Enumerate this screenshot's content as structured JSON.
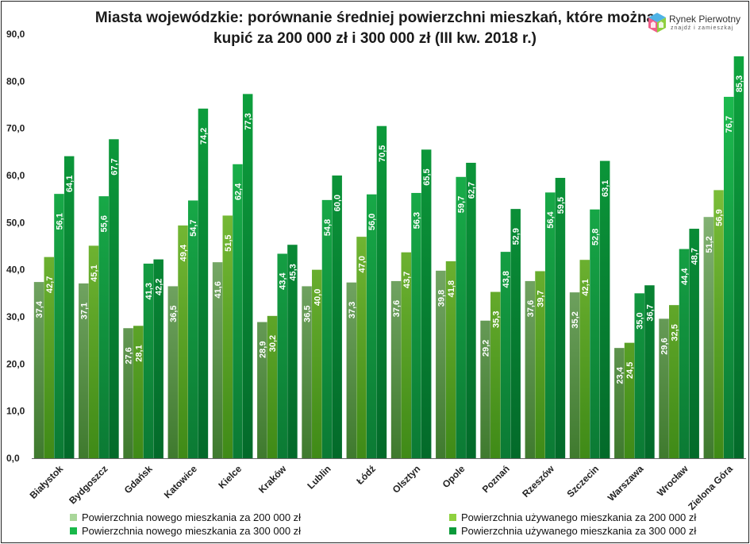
{
  "chart_data": {
    "type": "bar",
    "title": "Miasta wojewódzkie: porównanie średniej powierzchni mieszkań, które można kupić za 200 000 zł i 300 000 zł (III kw. 2018 r.)",
    "title_lines": [
      "Miasta wojewódzkie: porównanie średniej powierzchni mieszkań, które można",
      "kupić za 200 000 zł i 300 000 zł (III kw. 2018 r.)"
    ],
    "xlabel": "",
    "ylabel": "",
    "ylim": [
      0,
      90
    ],
    "yticks": [
      "0,0",
      "10,0",
      "20,0",
      "30,0",
      "40,0",
      "50,0",
      "60,0",
      "70,0",
      "80,0",
      "90,0"
    ],
    "grid": false,
    "legend_position": "bottom",
    "categories": [
      "Białystok",
      "Bydgoszcz",
      "Gdańsk",
      "Katowice",
      "Kielce",
      "Kraków",
      "Lublin",
      "Łódź",
      "Olsztyn",
      "Opole",
      "Poznań",
      "Rzeszów",
      "Szczecin",
      "Warszawa",
      "Wrocław",
      "Zielona Góra"
    ],
    "series": [
      {
        "name": "Powierzchnia nowego mieszkania za 200 000 zł",
        "color": "#a9d69a",
        "values": [
          37.4,
          37.1,
          27.6,
          36.5,
          41.6,
          28.9,
          36.5,
          37.3,
          37.6,
          39.8,
          29.2,
          37.6,
          35.2,
          23.4,
          29.6,
          51.2
        ],
        "labels": [
          "37,4",
          "37,1",
          "27,6",
          "36,5",
          "41,6",
          "28,9",
          "36,5",
          "37,3",
          "37,6",
          "39,8",
          "29,2",
          "37,6",
          "35,2",
          "23,4",
          "29,6",
          "51,2"
        ]
      },
      {
        "name": "Powierzchnia używanego mieszkania za 200 000 zł",
        "color": "#8fd13f",
        "values": [
          42.7,
          45.1,
          28.1,
          49.4,
          51.5,
          30.2,
          40.0,
          47.0,
          43.7,
          41.8,
          35.3,
          39.7,
          42.1,
          24.5,
          32.5,
          56.9
        ],
        "labels": [
          "42,7",
          "45,1",
          "28,1",
          "49,4",
          "51,5",
          "30,2",
          "40,0",
          "47,0",
          "43,7",
          "41,8",
          "35,3",
          "39,7",
          "42,1",
          "24,5",
          "32,5",
          "56,9"
        ]
      },
      {
        "name": "Powierzchnia nowego mieszkania za 300 000 zł",
        "color": "#18b84a",
        "values": [
          56.1,
          55.6,
          41.3,
          54.7,
          62.4,
          43.4,
          54.8,
          56.0,
          56.3,
          59.7,
          43.8,
          56.4,
          52.8,
          35.0,
          44.4,
          76.7
        ],
        "labels": [
          "56,1",
          "55,6",
          "41,3",
          "54,7",
          "62,4",
          "43,4",
          "54,8",
          "56,0",
          "56,3",
          "59,7",
          "43,8",
          "56,4",
          "52,8",
          "35,0",
          "44,4",
          "76,7"
        ]
      },
      {
        "name": "Powierzchnia używanego mieszkania za 300 000 zł",
        "color": "#0a9a3a",
        "values": [
          64.1,
          67.7,
          42.2,
          74.2,
          77.3,
          45.3,
          60.0,
          70.5,
          65.5,
          62.7,
          52.9,
          59.5,
          63.1,
          36.7,
          48.7,
          85.3
        ],
        "labels": [
          "64,1",
          "67,7",
          "42,2",
          "74,2",
          "77,3",
          "45,3",
          "60,0",
          "70,5",
          "65,5",
          "62,7",
          "52,9",
          "59,5",
          "63,1",
          "36,7",
          "48,7",
          "85,3"
        ]
      }
    ]
  },
  "logo": {
    "name": "Rynek Pierwotny",
    "tagline": "znajdź i zamieszkaj"
  }
}
